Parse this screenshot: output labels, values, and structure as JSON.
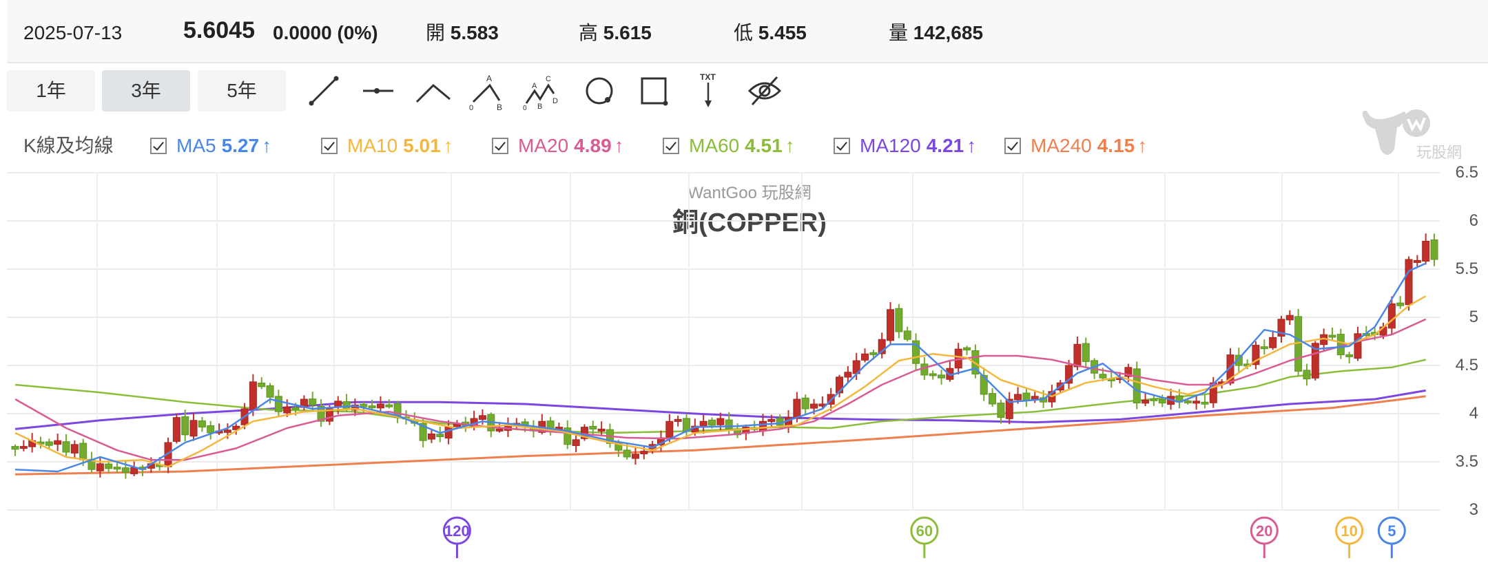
{
  "header": {
    "date": "2025-07-13",
    "price": "5.6045",
    "change": "0.0000 (0%)",
    "open_label": "開",
    "open": "5.583",
    "high_label": "高",
    "high": "5.615",
    "low_label": "低",
    "low": "5.455",
    "volume_label": "量",
    "volume": "142,685"
  },
  "range_buttons": [
    {
      "label": "1年",
      "active": false
    },
    {
      "label": "3年",
      "active": true
    },
    {
      "label": "5年",
      "active": false
    }
  ],
  "drawing_tools": [
    {
      "name": "trend-line-icon"
    },
    {
      "name": "horizontal-line-icon"
    },
    {
      "name": "angle-line-icon"
    },
    {
      "name": "abc-pattern-icon",
      "labels": [
        "0",
        "A",
        "B"
      ]
    },
    {
      "name": "abcd-pattern-icon",
      "labels": [
        "0",
        "A",
        "B",
        "C",
        "D"
      ]
    },
    {
      "name": "circle-icon"
    },
    {
      "name": "rectangle-icon"
    },
    {
      "name": "text-annotation-icon",
      "label": "TXT"
    },
    {
      "name": "hide-drawings-icon"
    }
  ],
  "legend": {
    "label": "K線及均線",
    "items": [
      {
        "name": "MA5",
        "value": "5.27",
        "arrow": "↑",
        "color": "#4a86e8",
        "checked": true
      },
      {
        "name": "MA10",
        "value": "5.01",
        "arrow": "↑",
        "color": "#f4b63c",
        "checked": true
      },
      {
        "name": "MA20",
        "value": "4.89",
        "arrow": "↑",
        "color": "#d95b94",
        "checked": true
      },
      {
        "name": "MA60",
        "value": "4.51",
        "arrow": "↑",
        "color": "#8bbd3a",
        "checked": true
      },
      {
        "name": "MA120",
        "value": "4.21",
        "arrow": "↑",
        "color": "#7b47e0",
        "checked": true
      },
      {
        "name": "MA240",
        "value": "4.15",
        "arrow": "↑",
        "color": "#ef7f4f",
        "checked": true
      }
    ]
  },
  "watermark": {
    "brand": "WantGoo 玩股網",
    "logo_text": "玩股網"
  },
  "chart_data": {
    "type": "candlestick",
    "title": "銅(COPPER)",
    "subtitle": "WantGoo 玩股網",
    "xlabel": "",
    "ylabel": "",
    "ylim": [
      3,
      6.5
    ],
    "y_ticks": [
      "6.5",
      "6",
      "5.5",
      "5",
      "4.5",
      "4",
      "3.5",
      "3"
    ],
    "grid": true,
    "up_color": "#c0302a",
    "down_color": "#72ab2e",
    "closes": [
      3.63,
      3.66,
      3.72,
      3.7,
      3.67,
      3.72,
      3.6,
      3.68,
      3.52,
      3.42,
      3.48,
      3.43,
      3.44,
      3.39,
      3.44,
      3.42,
      3.48,
      3.46,
      3.7,
      3.96,
      3.78,
      3.93,
      3.86,
      3.8,
      3.82,
      3.83,
      3.87,
      4.05,
      4.33,
      4.28,
      4.17,
      4.02,
      4.07,
      4.05,
      4.15,
      4.09,
      3.92,
      4.05,
      4.13,
      4.05,
      4.09,
      4.07,
      4.07,
      4.1,
      4.09,
      3.96,
      3.95,
      3.9,
      3.72,
      3.79,
      3.76,
      3.86,
      3.9,
      3.88,
      3.95,
      3.98,
      3.82,
      3.84,
      3.88,
      3.9,
      3.86,
      3.82,
      3.92,
      3.84,
      3.86,
      3.68,
      3.73,
      3.86,
      3.84,
      3.84,
      3.69,
      3.62,
      3.55,
      3.58,
      3.61,
      3.68,
      3.75,
      3.92,
      3.94,
      3.82,
      3.87,
      3.92,
      3.88,
      3.95,
      3.84,
      3.78,
      3.86,
      3.84,
      3.92,
      3.94,
      3.88,
      3.96,
      4.15,
      4.05,
      4.1,
      4.1,
      4.2,
      4.38,
      4.43,
      4.55,
      4.62,
      4.63,
      4.77,
      5.08,
      4.85,
      4.77,
      4.52,
      4.4,
      4.4,
      4.37,
      4.47,
      4.67,
      4.66,
      4.41,
      4.2,
      4.1,
      3.96,
      4.15,
      4.2,
      4.14,
      4.18,
      4.12,
      4.23,
      4.32,
      4.5,
      4.72,
      4.54,
      4.42,
      4.37,
      4.34,
      4.38,
      4.48,
      4.11,
      4.14,
      4.15,
      4.11,
      4.18,
      4.12,
      4.12,
      4.13,
      4.1,
      4.32,
      4.33,
      4.61,
      4.5,
      4.51,
      4.71,
      4.68,
      4.79,
      4.98,
      5.02,
      4.44,
      4.36,
      4.73,
      4.82,
      4.81,
      4.61,
      4.59,
      4.83,
      4.83,
      4.82,
      4.9,
      5.14,
      5.12,
      5.6,
      5.59,
      5.79,
      5.6
    ],
    "moving_averages": {
      "MA5": {
        "last": 5.27,
        "points": [
          [
            0,
            3.42
          ],
          [
            5,
            3.4
          ],
          [
            10,
            3.55
          ],
          [
            15,
            3.42
          ],
          [
            20,
            3.7
          ],
          [
            25,
            3.85
          ],
          [
            30,
            4.15
          ],
          [
            35,
            4.05
          ],
          [
            40,
            4.08
          ],
          [
            45,
            3.98
          ],
          [
            50,
            3.8
          ],
          [
            55,
            3.92
          ],
          [
            60,
            3.88
          ],
          [
            65,
            3.82
          ],
          [
            70,
            3.72
          ],
          [
            75,
            3.65
          ],
          [
            80,
            3.86
          ],
          [
            85,
            3.87
          ],
          [
            90,
            3.9
          ],
          [
            95,
            4.05
          ],
          [
            100,
            4.5
          ],
          [
            103,
            4.72
          ],
          [
            106,
            4.72
          ],
          [
            110,
            4.4
          ],
          [
            113,
            4.47
          ],
          [
            117,
            4.12
          ],
          [
            121,
            4.15
          ],
          [
            125,
            4.42
          ],
          [
            128,
            4.52
          ],
          [
            132,
            4.24
          ],
          [
            137,
            4.12
          ],
          [
            140,
            4.22
          ],
          [
            144,
            4.57
          ],
          [
            147,
            4.87
          ],
          [
            150,
            4.82
          ],
          [
            153,
            4.67
          ],
          [
            157,
            4.7
          ],
          [
            160,
            4.9
          ],
          [
            164,
            5.48
          ],
          [
            166,
            5.56
          ]
        ]
      },
      "MA10": {
        "last": 5.01,
        "points": [
          [
            0,
            3.8
          ],
          [
            6,
            3.55
          ],
          [
            10,
            3.5
          ],
          [
            15,
            3.52
          ],
          [
            18,
            3.45
          ],
          [
            22,
            3.62
          ],
          [
            28,
            3.92
          ],
          [
            34,
            4.02
          ],
          [
            40,
            4.05
          ],
          [
            46,
            3.95
          ],
          [
            52,
            3.85
          ],
          [
            58,
            3.88
          ],
          [
            64,
            3.82
          ],
          [
            70,
            3.7
          ],
          [
            75,
            3.62
          ],
          [
            80,
            3.8
          ],
          [
            86,
            3.84
          ],
          [
            92,
            3.88
          ],
          [
            96,
            4.05
          ],
          [
            100,
            4.28
          ],
          [
            104,
            4.55
          ],
          [
            108,
            4.62
          ],
          [
            112,
            4.58
          ],
          [
            116,
            4.35
          ],
          [
            122,
            4.18
          ],
          [
            126,
            4.32
          ],
          [
            130,
            4.38
          ],
          [
            134,
            4.28
          ],
          [
            138,
            4.2
          ],
          [
            142,
            4.3
          ],
          [
            146,
            4.55
          ],
          [
            150,
            4.72
          ],
          [
            154,
            4.78
          ],
          [
            157,
            4.72
          ],
          [
            160,
            4.82
          ],
          [
            164,
            5.12
          ],
          [
            166,
            5.22
          ]
        ]
      },
      "MA20": {
        "last": 4.89,
        "points": [
          [
            0,
            4.15
          ],
          [
            6,
            3.85
          ],
          [
            12,
            3.62
          ],
          [
            16,
            3.52
          ],
          [
            20,
            3.52
          ],
          [
            26,
            3.64
          ],
          [
            32,
            3.85
          ],
          [
            38,
            3.98
          ],
          [
            44,
            4.02
          ],
          [
            50,
            3.92
          ],
          [
            56,
            3.86
          ],
          [
            62,
            3.82
          ],
          [
            68,
            3.78
          ],
          [
            72,
            3.75
          ],
          [
            78,
            3.74
          ],
          [
            84,
            3.78
          ],
          [
            90,
            3.84
          ],
          [
            94,
            3.92
          ],
          [
            98,
            4.1
          ],
          [
            102,
            4.3
          ],
          [
            106,
            4.45
          ],
          [
            110,
            4.55
          ],
          [
            114,
            4.6
          ],
          [
            118,
            4.6
          ],
          [
            122,
            4.56
          ],
          [
            126,
            4.48
          ],
          [
            130,
            4.42
          ],
          [
            134,
            4.35
          ],
          [
            138,
            4.3
          ],
          [
            142,
            4.3
          ],
          [
            146,
            4.42
          ],
          [
            150,
            4.55
          ],
          [
            154,
            4.65
          ],
          [
            158,
            4.75
          ],
          [
            162,
            4.82
          ],
          [
            166,
            4.98
          ]
        ]
      },
      "MA60": {
        "last": 4.51,
        "points": [
          [
            0,
            4.3
          ],
          [
            10,
            4.22
          ],
          [
            20,
            4.12
          ],
          [
            30,
            4.04
          ],
          [
            40,
            4.02
          ],
          [
            50,
            3.9
          ],
          [
            60,
            3.83
          ],
          [
            70,
            3.8
          ],
          [
            80,
            3.82
          ],
          [
            90,
            3.86
          ],
          [
            96,
            3.85
          ],
          [
            102,
            3.92
          ],
          [
            110,
            3.97
          ],
          [
            120,
            4.02
          ],
          [
            130,
            4.12
          ],
          [
            140,
            4.2
          ],
          [
            146,
            4.28
          ],
          [
            150,
            4.38
          ],
          [
            156,
            4.44
          ],
          [
            162,
            4.48
          ],
          [
            166,
            4.56
          ]
        ]
      },
      "MA120": {
        "last": 4.21,
        "points": [
          [
            0,
            3.84
          ],
          [
            10,
            3.93
          ],
          [
            20,
            4.0
          ],
          [
            30,
            4.05
          ],
          [
            40,
            4.12
          ],
          [
            50,
            4.12
          ],
          [
            60,
            4.1
          ],
          [
            70,
            4.05
          ],
          [
            80,
            4.0
          ],
          [
            90,
            3.96
          ],
          [
            100,
            3.94
          ],
          [
            110,
            3.93
          ],
          [
            120,
            3.91
          ],
          [
            130,
            3.94
          ],
          [
            140,
            4.02
          ],
          [
            150,
            4.1
          ],
          [
            160,
            4.15
          ],
          [
            166,
            4.24
          ]
        ]
      },
      "MA240": {
        "last": 4.15,
        "points": [
          [
            0,
            3.37
          ],
          [
            20,
            3.4
          ],
          [
            40,
            3.48
          ],
          [
            60,
            3.56
          ],
          [
            80,
            3.62
          ],
          [
            100,
            3.73
          ],
          [
            120,
            3.85
          ],
          [
            140,
            3.98
          ],
          [
            155,
            4.06
          ],
          [
            166,
            4.18
          ]
        ]
      }
    },
    "period_markers": [
      {
        "label": "120",
        "x_index": 52,
        "color": "#7b47e0"
      },
      {
        "label": "60",
        "x_index": 107,
        "color": "#8bbd3a"
      },
      {
        "label": "20",
        "x_index": 147,
        "color": "#d95b94"
      },
      {
        "label": "10",
        "x_index": 157,
        "color": "#f4b63c"
      },
      {
        "label": "5",
        "x_index": 162,
        "color": "#4a86e8"
      }
    ]
  }
}
